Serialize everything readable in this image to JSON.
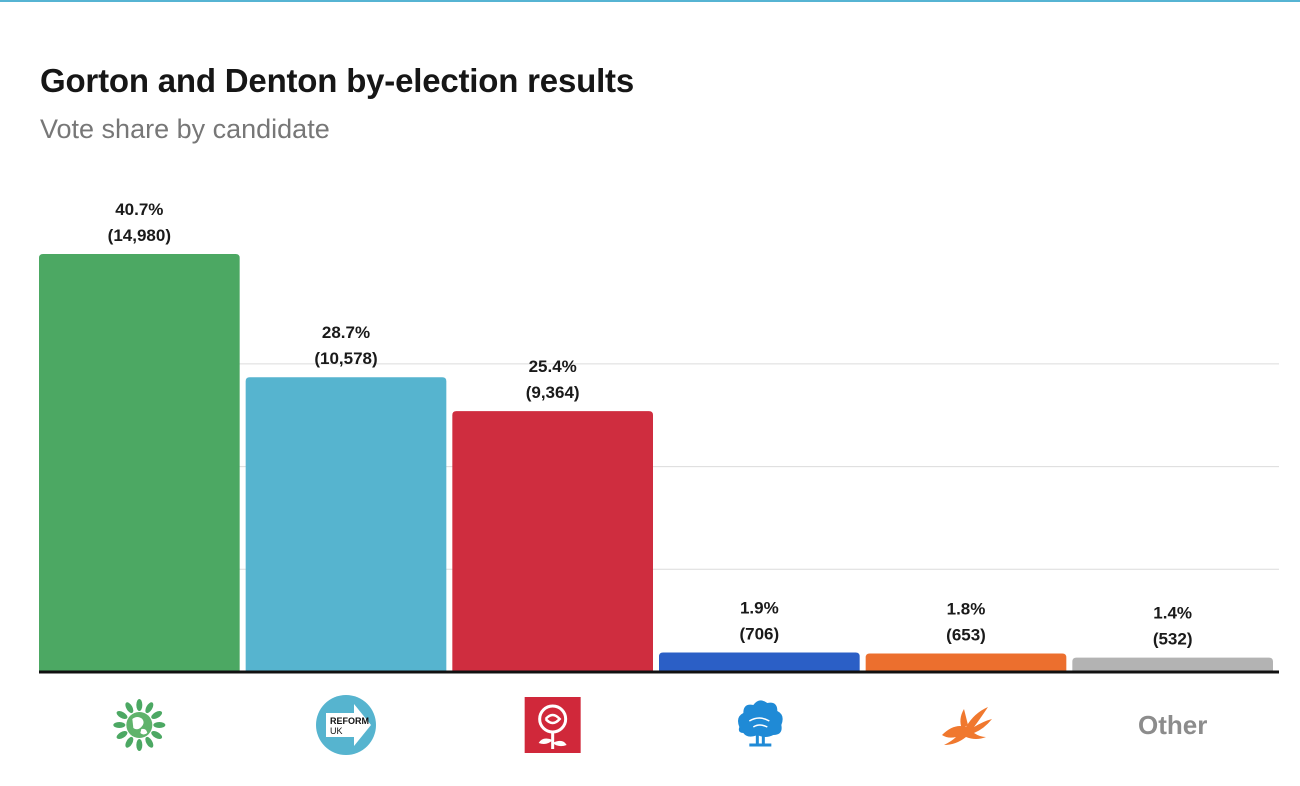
{
  "title": "Gorton and Denton by-election results",
  "subtitle": "Vote share by candidate",
  "chart_data": {
    "type": "bar",
    "title": "Gorton and Denton by-election results",
    "subtitle": "Vote share by candidate",
    "xlabel": "",
    "ylabel": "",
    "ylim": [
      0,
      40.7
    ],
    "gridlines": [
      10,
      20,
      30
    ],
    "grid": true,
    "legend": "none",
    "categories": [
      "Green",
      "Reform UK",
      "Labour",
      "Conservative",
      "Liberal Democrat",
      "Other"
    ],
    "category_axis": [
      {
        "kind": "icon",
        "icon": "green-party-globe-icon"
      },
      {
        "kind": "icon",
        "icon": "reform-uk-arrow-icon",
        "text_line1": "REFORM",
        "text_line2": "UK"
      },
      {
        "kind": "icon",
        "icon": "labour-rose-icon"
      },
      {
        "kind": "icon",
        "icon": "conservative-tree-icon"
      },
      {
        "kind": "icon",
        "icon": "lib-dem-bird-icon"
      },
      {
        "kind": "text",
        "text": "Other"
      }
    ],
    "values": [
      40.7,
      28.7,
      25.4,
      1.9,
      1.8,
      1.4
    ],
    "votes": [
      14980,
      10578,
      9364,
      706,
      653,
      532
    ],
    "data_labels": [
      [
        "40.7%",
        "(14,980)"
      ],
      [
        "28.7%",
        "(10,578)"
      ],
      [
        "25.4%",
        "(9,364)"
      ],
      [
        "1.9%",
        "(706)"
      ],
      [
        "1.8%",
        "(653)"
      ],
      [
        "1.4%",
        "(532)"
      ]
    ],
    "colors": [
      "#4ca863",
      "#56b4cf",
      "#cf2d3f",
      "#2b5fc6",
      "#ec6f2e",
      "#b3b3b3"
    ]
  }
}
